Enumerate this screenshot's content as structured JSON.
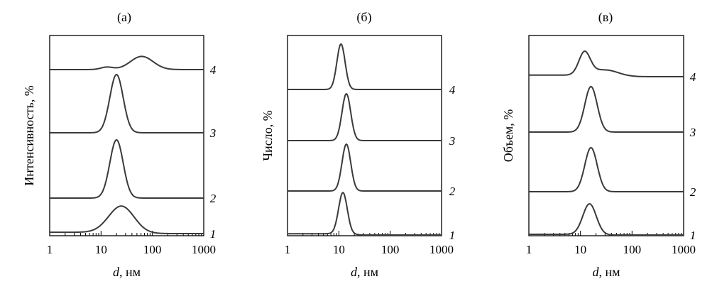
{
  "chart_data": [
    {
      "type": "line",
      "panel_label": "(а)",
      "xlabel_var": "d",
      "xlabel_unit": ", нм",
      "ylabel": "Интенсивность, %",
      "x_scale": "log",
      "xlim": [
        1,
        1000
      ],
      "x_ticks": [
        "1",
        "10",
        "100",
        "1000"
      ],
      "series": [
        {
          "name": "1",
          "peak_d": 25,
          "width": 0.25,
          "height": 0.78,
          "baseline": 0.04
        },
        {
          "name": "2",
          "peak_d": 20,
          "width": 0.13,
          "height": 0.95,
          "baseline": 0
        },
        {
          "name": "3",
          "peak_d": 20,
          "width": 0.13,
          "height": 0.95,
          "baseline": 0
        },
        {
          "name": "4",
          "peak_d": 62,
          "width": 0.22,
          "height": 0.43,
          "baseline": 0,
          "shoulder": {
            "d": 13,
            "width": 0.12,
            "height": 0.08
          }
        }
      ]
    },
    {
      "type": "line",
      "panel_label": "(б)",
      "xlabel_var": "d",
      "xlabel_unit": ", нм",
      "ylabel": "Число, %",
      "x_scale": "log",
      "xlim": [
        1,
        1000
      ],
      "x_ticks": [
        "1",
        "10",
        "100",
        "1000"
      ],
      "series": [
        {
          "name": "1",
          "peak_d": 12,
          "width": 0.085,
          "height": 0.95,
          "baseline": 0.03
        },
        {
          "name": "2",
          "peak_d": 14,
          "width": 0.085,
          "height": 0.95,
          "baseline": 0
        },
        {
          "name": "3",
          "peak_d": 14,
          "width": 0.085,
          "height": 0.95,
          "baseline": 0
        },
        {
          "name": "4",
          "peak_d": 11,
          "width": 0.08,
          "height": 0.95,
          "baseline": 0
        }
      ]
    },
    {
      "type": "line",
      "panel_label": "(в)",
      "xlabel_var": "d",
      "xlabel_unit": ", нм",
      "ylabel": "Объем, %",
      "x_scale": "log",
      "xlim": [
        1,
        1000
      ],
      "x_ticks": [
        "1",
        "10",
        "100",
        "1000"
      ],
      "series": [
        {
          "name": "1",
          "peak_d": 15,
          "width": 0.13,
          "height": 0.85,
          "baseline": 0.02
        },
        {
          "name": "2",
          "peak_d": 16,
          "width": 0.12,
          "height": 0.95,
          "baseline": 0
        },
        {
          "name": "3",
          "peak_d": 16,
          "width": 0.12,
          "height": 0.95,
          "baseline": 0
        },
        {
          "name": "4",
          "peak_d": 12,
          "width": 0.11,
          "height": 0.72,
          "baseline": 0.05,
          "shoulder": {
            "d": 30,
            "width": 0.25,
            "height": 0.22
          }
        }
      ]
    }
  ]
}
